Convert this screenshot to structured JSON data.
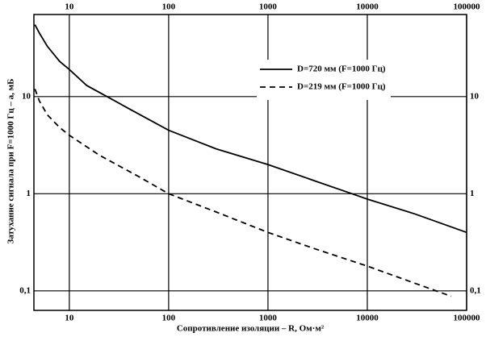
{
  "chart_data": {
    "type": "line",
    "xlabel": "Сопротивление изоляции – R, Ом·м²",
    "ylabel": "Затухание сигнала при  F=1000 Гц – а, мБ",
    "xscale": "log",
    "yscale": "log",
    "grid": true,
    "legend": "upper right",
    "xlim": [
      4.4,
      100000
    ],
    "ylim": [
      0.063,
      70
    ],
    "xticks": [
      10,
      100,
      1000,
      10000,
      100000
    ],
    "yticks": [
      10,
      1,
      {
        "value": 0.1,
        "label": "0,1"
      }
    ],
    "series": [
      {
        "name": "D=720 мм (F=1000 Гц)",
        "color": "#000000",
        "dash": "solid",
        "x": [
          4.5,
          5,
          6,
          8,
          10,
          15,
          24,
          40,
          100,
          300,
          1000,
          3000,
          7000,
          10000,
          30000,
          100000
        ],
        "values": [
          55,
          45,
          33,
          23,
          19,
          13,
          10,
          7.5,
          4.5,
          2.9,
          2.0,
          1.35,
          1.0,
          0.88,
          0.62,
          0.4
        ]
      },
      {
        "name": "D=219 мм (F=1000 Гц)",
        "color": "#000000",
        "dash": "dashed",
        "x": [
          4.5,
          5,
          6,
          8,
          10,
          20,
          50,
          100,
          300,
          1000,
          3000,
          10000,
          30000,
          70000
        ],
        "values": [
          12,
          9,
          6.5,
          4.8,
          4,
          2.5,
          1.5,
          1.0,
          0.65,
          0.4,
          0.27,
          0.18,
          0.12,
          0.088
        ]
      }
    ]
  }
}
